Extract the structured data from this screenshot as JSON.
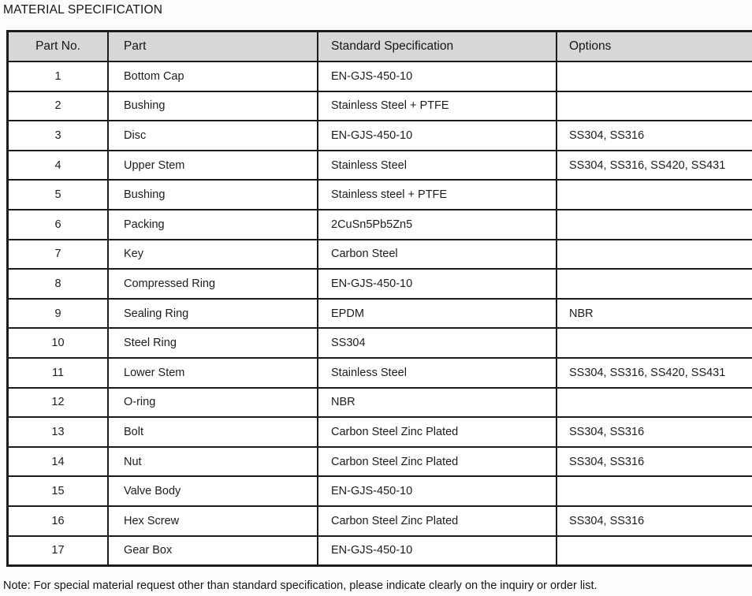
{
  "page": {
    "title": "MATERIAL SPECIFICATION",
    "note": "Note: For special material request other than standard specification, please indicate clearly on the inquiry or order list."
  },
  "table": {
    "headers": [
      "Part No.",
      "Part",
      "Standard Specification",
      "Options"
    ],
    "rows": [
      {
        "no": "1",
        "part": "Bottom Cap",
        "spec": "EN-GJS-450-10",
        "options": ""
      },
      {
        "no": "2",
        "part": "Bushing",
        "spec": "Stainless Steel + PTFE",
        "options": ""
      },
      {
        "no": "3",
        "part": "Disc",
        "spec": "EN-GJS-450-10",
        "options": "SS304, SS316"
      },
      {
        "no": "4",
        "part": "Upper Stem",
        "spec": "Stainless Steel",
        "options": "SS304, SS316, SS420, SS431"
      },
      {
        "no": "5",
        "part": "Bushing",
        "spec": "Stainless steel + PTFE",
        "options": ""
      },
      {
        "no": "6",
        "part": "Packing",
        "spec": "2CuSn5Pb5Zn5",
        "options": ""
      },
      {
        "no": "7",
        "part": "Key",
        "spec": "Carbon Steel",
        "options": ""
      },
      {
        "no": "8",
        "part": "Compressed Ring",
        "spec": "EN-GJS-450-10",
        "options": ""
      },
      {
        "no": "9",
        "part": "Sealing Ring",
        "spec": "EPDM",
        "options": "NBR"
      },
      {
        "no": "10",
        "part": "Steel Ring",
        "spec": "SS304",
        "options": ""
      },
      {
        "no": "11",
        "part": "Lower Stem",
        "spec": "Stainless Steel",
        "options": "SS304, SS316, SS420, SS431"
      },
      {
        "no": "12",
        "part": "O-ring",
        "spec": "NBR",
        "options": ""
      },
      {
        "no": "13",
        "part": "Bolt",
        "spec": "Carbon Steel Zinc Plated",
        "options": "SS304, SS316"
      },
      {
        "no": "14",
        "part": "Nut",
        "spec": "Carbon Steel Zinc Plated",
        "options": "SS304, SS316"
      },
      {
        "no": "15",
        "part": "Valve Body",
        "spec": "EN-GJS-450-10",
        "options": ""
      },
      {
        "no": "16",
        "part": "Hex Screw",
        "spec": "Carbon Steel Zinc Plated",
        "options": "SS304, SS316"
      },
      {
        "no": "17",
        "part": "Gear Box",
        "spec": "EN-GJS-450-10",
        "options": ""
      }
    ],
    "colors": {
      "header_bg": "#d7d7d7",
      "border": "#1c1c1c",
      "text": "#1c1c1c"
    }
  }
}
